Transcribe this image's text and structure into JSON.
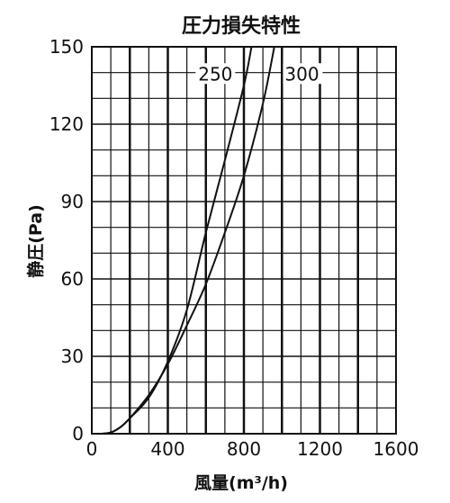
{
  "chart_data": {
    "type": "line",
    "title": "圧力損失特性",
    "xlabel": "風量(m³/h)",
    "ylabel": "静圧(Pa)",
    "xlim": [
      0,
      1600
    ],
    "ylim": [
      0,
      150
    ],
    "x_ticks": [
      0,
      400,
      800,
      1200,
      1600
    ],
    "y_ticks": [
      0,
      30,
      60,
      90,
      120,
      150
    ],
    "x_tick_labels": [
      "0",
      "400",
      "800",
      "1200",
      "1600"
    ],
    "y_tick_labels": [
      "0",
      "30",
      "60",
      "90",
      "120",
      "150"
    ],
    "grid": true,
    "series": [
      {
        "name": "250",
        "points": [
          [
            50,
            0
          ],
          [
            100,
            0.5
          ],
          [
            150,
            2.5
          ],
          [
            200,
            6
          ],
          [
            300,
            14
          ],
          [
            400,
            28
          ],
          [
            500,
            48
          ],
          [
            600,
            78
          ],
          [
            700,
            106
          ],
          [
            800,
            135
          ],
          [
            840,
            150
          ]
        ]
      },
      {
        "name": "300",
        "points": [
          [
            50,
            0
          ],
          [
            100,
            0.5
          ],
          [
            150,
            2.5
          ],
          [
            200,
            6
          ],
          [
            300,
            15
          ],
          [
            400,
            27
          ],
          [
            500,
            42
          ],
          [
            600,
            58
          ],
          [
            700,
            78
          ],
          [
            800,
            100
          ],
          [
            900,
            128
          ],
          [
            960,
            150
          ]
        ]
      }
    ]
  }
}
